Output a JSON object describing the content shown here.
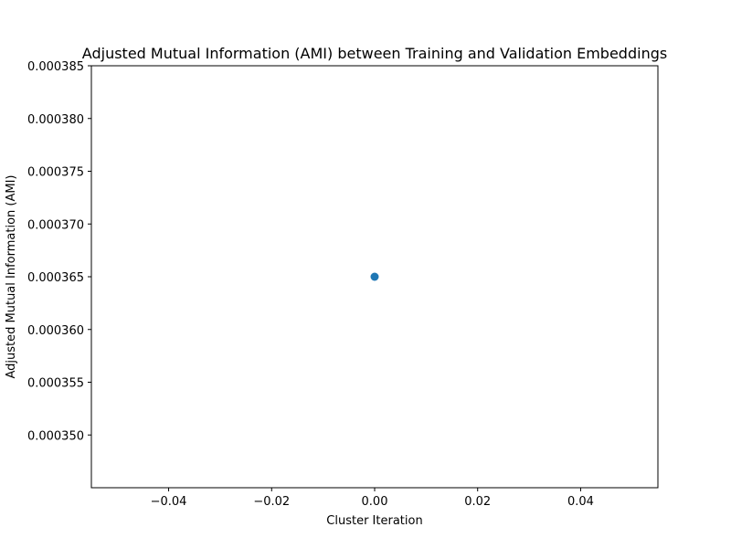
{
  "chart_data": {
    "type": "scatter",
    "title": "Adjusted Mutual Information (AMI) between Training and Validation Embeddings",
    "xlabel": "Cluster Iteration",
    "ylabel": "Adjusted Mutual Information (AMI)",
    "xlim": [
      -0.055,
      0.055
    ],
    "ylim": [
      0.000345,
      0.000385
    ],
    "xticks": [
      -0.04,
      -0.02,
      0.0,
      0.02,
      0.04
    ],
    "xtick_labels": [
      "−0.04",
      "−0.02",
      "0.00",
      "0.02",
      "0.04"
    ],
    "yticks": [
      0.00035,
      0.000355,
      0.00036,
      0.000365,
      0.00037,
      0.000375,
      0.00038,
      0.000385
    ],
    "ytick_labels": [
      "0.000350",
      "0.000355",
      "0.000360",
      "0.000365",
      "0.000370",
      "0.000375",
      "0.000380",
      "0.000385"
    ],
    "grid": false,
    "series": [
      {
        "x": [
          0
        ],
        "y": [
          0.000365
        ],
        "color": "#1f77b4"
      }
    ]
  }
}
